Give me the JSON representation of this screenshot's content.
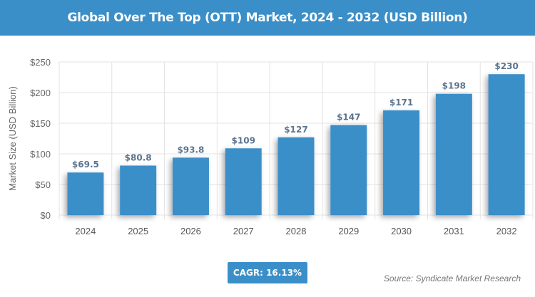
{
  "header": {
    "title": "Global Over The Top (OTT) Market, 2024 - 2032 (USD Billion)"
  },
  "chart_data": {
    "type": "bar",
    "title": "Global Over The Top (OTT) Market, 2024 - 2032 (USD Billion)",
    "xlabel": "",
    "ylabel": "Market Size (USD Billion)",
    "categories": [
      "2024",
      "2025",
      "2026",
      "2027",
      "2028",
      "2029",
      "2030",
      "2031",
      "2032"
    ],
    "values": [
      69.5,
      80.8,
      93.8,
      109,
      127,
      147,
      171,
      198,
      230
    ],
    "data_labels": [
      "$69.5",
      "$80.8",
      "$93.8",
      "$109",
      "$127",
      "$147",
      "$171",
      "$198",
      "$230"
    ],
    "ylim": [
      0,
      250
    ],
    "yticks": [
      0,
      50,
      100,
      150,
      200,
      250
    ],
    "ytick_labels": [
      "$0",
      "$50",
      "$100",
      "$150",
      "$200",
      "$250"
    ],
    "grid": true,
    "bar_color": "#3a8fc9",
    "label_color": "#5a7390"
  },
  "footer": {
    "cagr": "CAGR: 16.13%",
    "source": "Source: Syndicate Market Research"
  }
}
